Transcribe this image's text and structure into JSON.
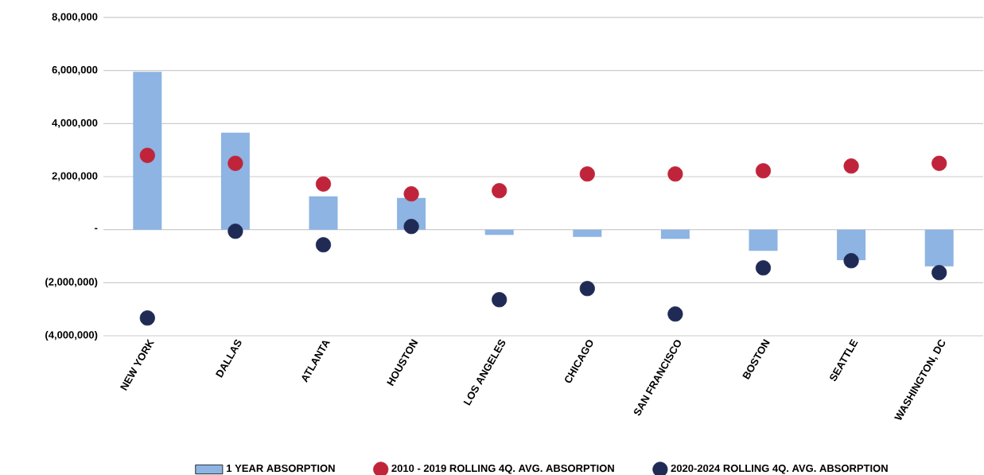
{
  "chart_data": {
    "type": "bar",
    "categories": [
      "NEW YORK",
      "DALLAS",
      "ATLANTA",
      "HOUSTON",
      "LOS ANGELES",
      "CHICAGO",
      "SAN FRANCISCO",
      "BOSTON",
      "SEATTLE",
      "WASHINGTON, DC"
    ],
    "series": [
      {
        "name": "1 YEAR ABSORPTION",
        "color": "#8db4e2",
        "values": [
          5950000,
          3660000,
          1260000,
          1200000,
          -200000,
          -270000,
          -350000,
          -800000,
          -1150000,
          -1380000
        ]
      },
      {
        "name": "2010 - 2019 ROLLING 4Q. AVG. ABSORPTION",
        "color": "#c0243a",
        "type": "scatter",
        "values": [
          2800000,
          2500000,
          1720000,
          1350000,
          1470000,
          2100000,
          2100000,
          2220000,
          2400000,
          2500000
        ]
      },
      {
        "name": "2020-2024 ROLLING 4Q. AVG. ABSORPTION",
        "color": "#1f2a55",
        "type": "scatter",
        "values": [
          -3330000,
          -60000,
          -570000,
          120000,
          -2640000,
          -2220000,
          -3180000,
          -1440000,
          -1170000,
          -1620000
        ]
      }
    ],
    "ylim": [
      -4000000,
      8000000
    ],
    "yticks": [
      {
        "value": -4000000,
        "label": "(4,000,000)"
      },
      {
        "value": -2000000,
        "label": "(2,000,000)"
      },
      {
        "value": 0,
        "label": "-"
      },
      {
        "value": 2000000,
        "label": "2,000,000"
      },
      {
        "value": 4000000,
        "label": "4,000,000"
      },
      {
        "value": 6000000,
        "label": "6,000,000"
      },
      {
        "value": 8000000,
        "label": "8,000,000"
      }
    ],
    "grid": "y",
    "legend": "bottom",
    "marker": "circle"
  }
}
